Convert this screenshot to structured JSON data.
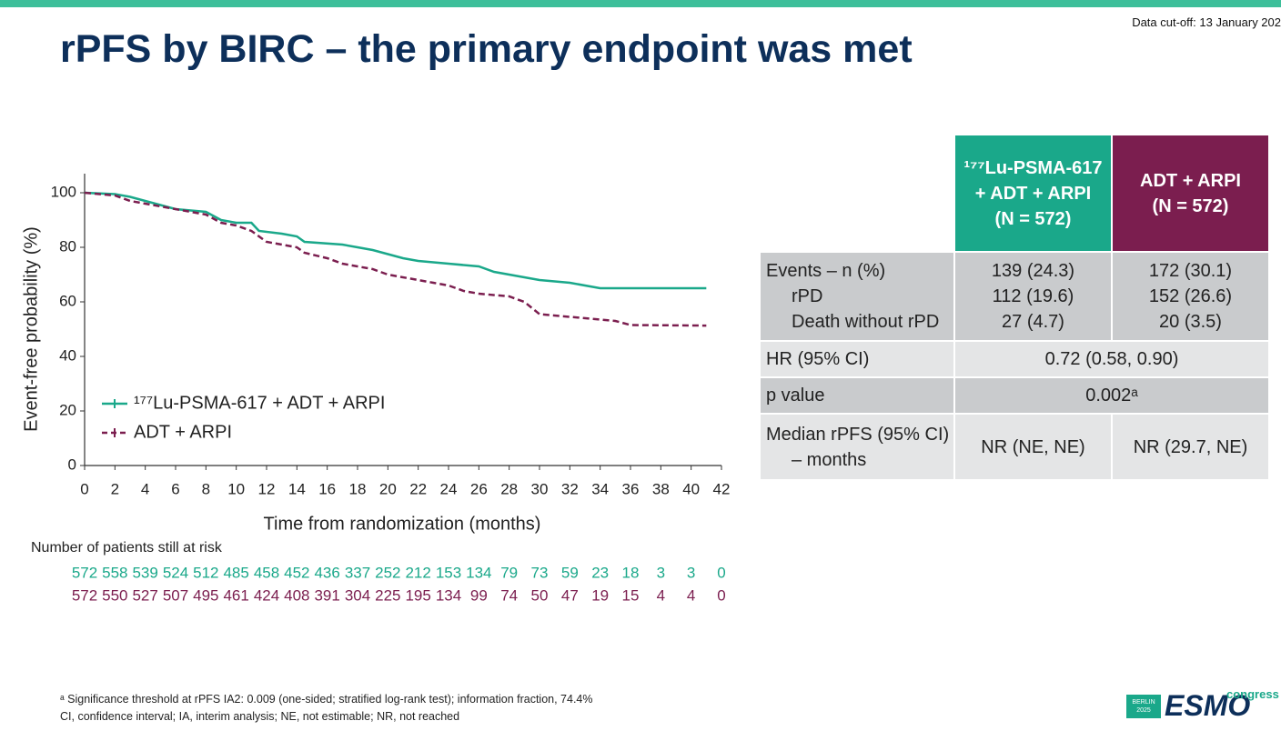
{
  "header": {
    "title": "rPFS by BIRC – the primary endpoint was met",
    "cutoff": "Data cut-off: 13 January 202"
  },
  "chart_data": {
    "type": "line",
    "y_label": "Event-free probability (%)",
    "x_label": "Time from randomization (months)",
    "xlim": [
      0,
      42
    ],
    "ylim": [
      0,
      107
    ],
    "xticks": [
      0,
      2,
      4,
      6,
      8,
      10,
      12,
      14,
      16,
      18,
      20,
      22,
      24,
      26,
      28,
      30,
      32,
      34,
      36,
      38,
      40,
      42
    ],
    "yticks": [
      0,
      20,
      40,
      60,
      80,
      100
    ],
    "legend": "lower left",
    "series": [
      {
        "name": "¹⁷⁷Lu-PSMA-617 + ADT + ARPI",
        "color": "#1aa88a",
        "dash": false,
        "x": [
          0,
          2,
          3,
          4,
          6,
          8,
          9,
          10,
          11,
          11.5,
          13,
          14,
          14.5,
          17,
          18,
          19,
          20,
          21,
          22,
          24,
          26,
          27,
          30,
          32,
          34,
          41
        ],
        "values": [
          100,
          99.5,
          98.5,
          97,
          94,
          93,
          90,
          89,
          89,
          86,
          85,
          84,
          82,
          81,
          80,
          79,
          77.5,
          76,
          75,
          74,
          73,
          71,
          68,
          67,
          65,
          65
        ]
      },
      {
        "name": "ADT + ARPI",
        "color": "#7b1e4f",
        "dash": true,
        "x": [
          0,
          2,
          3,
          4,
          6,
          8,
          9,
          10,
          11,
          12,
          14,
          14.5,
          16,
          17,
          18,
          19,
          20,
          22,
          23,
          24,
          25,
          26,
          28,
          29,
          30,
          32,
          35,
          36,
          41
        ],
        "values": [
          100,
          99,
          97,
          96,
          94,
          92,
          89,
          88,
          86,
          82,
          80,
          78,
          76,
          74,
          73,
          72,
          70,
          68,
          67,
          66,
          64,
          63,
          62,
          60,
          55.5,
          54.5,
          53,
          51.5,
          51.3
        ]
      }
    ]
  },
  "risk_table": {
    "title": "Number of patients still at risk",
    "rows": [
      [
        572,
        558,
        539,
        524,
        512,
        485,
        458,
        452,
        436,
        337,
        252,
        212,
        153,
        134,
        79,
        73,
        59,
        23,
        18,
        3,
        3,
        0
      ],
      [
        572,
        550,
        527,
        507,
        495,
        461,
        424,
        408,
        391,
        304,
        225,
        195,
        134,
        99,
        74,
        50,
        47,
        19,
        15,
        4,
        4,
        0
      ]
    ]
  },
  "table": {
    "columns": [
      [
        "¹⁷⁷Lu-PSMA-617",
        "+ ADT + ARPI",
        "(N = 572)"
      ],
      [
        "ADT + ARPI",
        "(N = 572)"
      ]
    ],
    "rows": [
      {
        "label": [
          "Events – n (%)",
          "rPD",
          "Death without rPD"
        ],
        "cells": [
          [
            "139 (24.3)",
            "112 (19.6)",
            "27 (4.7)"
          ],
          [
            "172 (30.1)",
            "152 (26.6)",
            "20 (3.5)"
          ]
        ]
      },
      {
        "label": [
          "HR (95% CI)"
        ],
        "merged": "0.72 (0.58, 0.90)"
      },
      {
        "label": [
          "p value"
        ],
        "merged": "0.002ᵃ"
      },
      {
        "label": [
          "Median rPFS (95% CI)",
          "– months"
        ],
        "cells": [
          [
            "NR (NE, NE)"
          ],
          [
            "NR (29.7, NE)"
          ]
        ]
      }
    ]
  },
  "footnotes": [
    "ᵃ Significance threshold at rPFS IA2: 0.009 (one-sided; stratified log-rank test); information fraction, 74.4%",
    "CI, confidence interval; IA, interim analysis; NE, not estimable; NR, not reached"
  ],
  "logo": {
    "city": "BERLIN 2025",
    "brand": "ESMO",
    "suffix": "congress"
  }
}
